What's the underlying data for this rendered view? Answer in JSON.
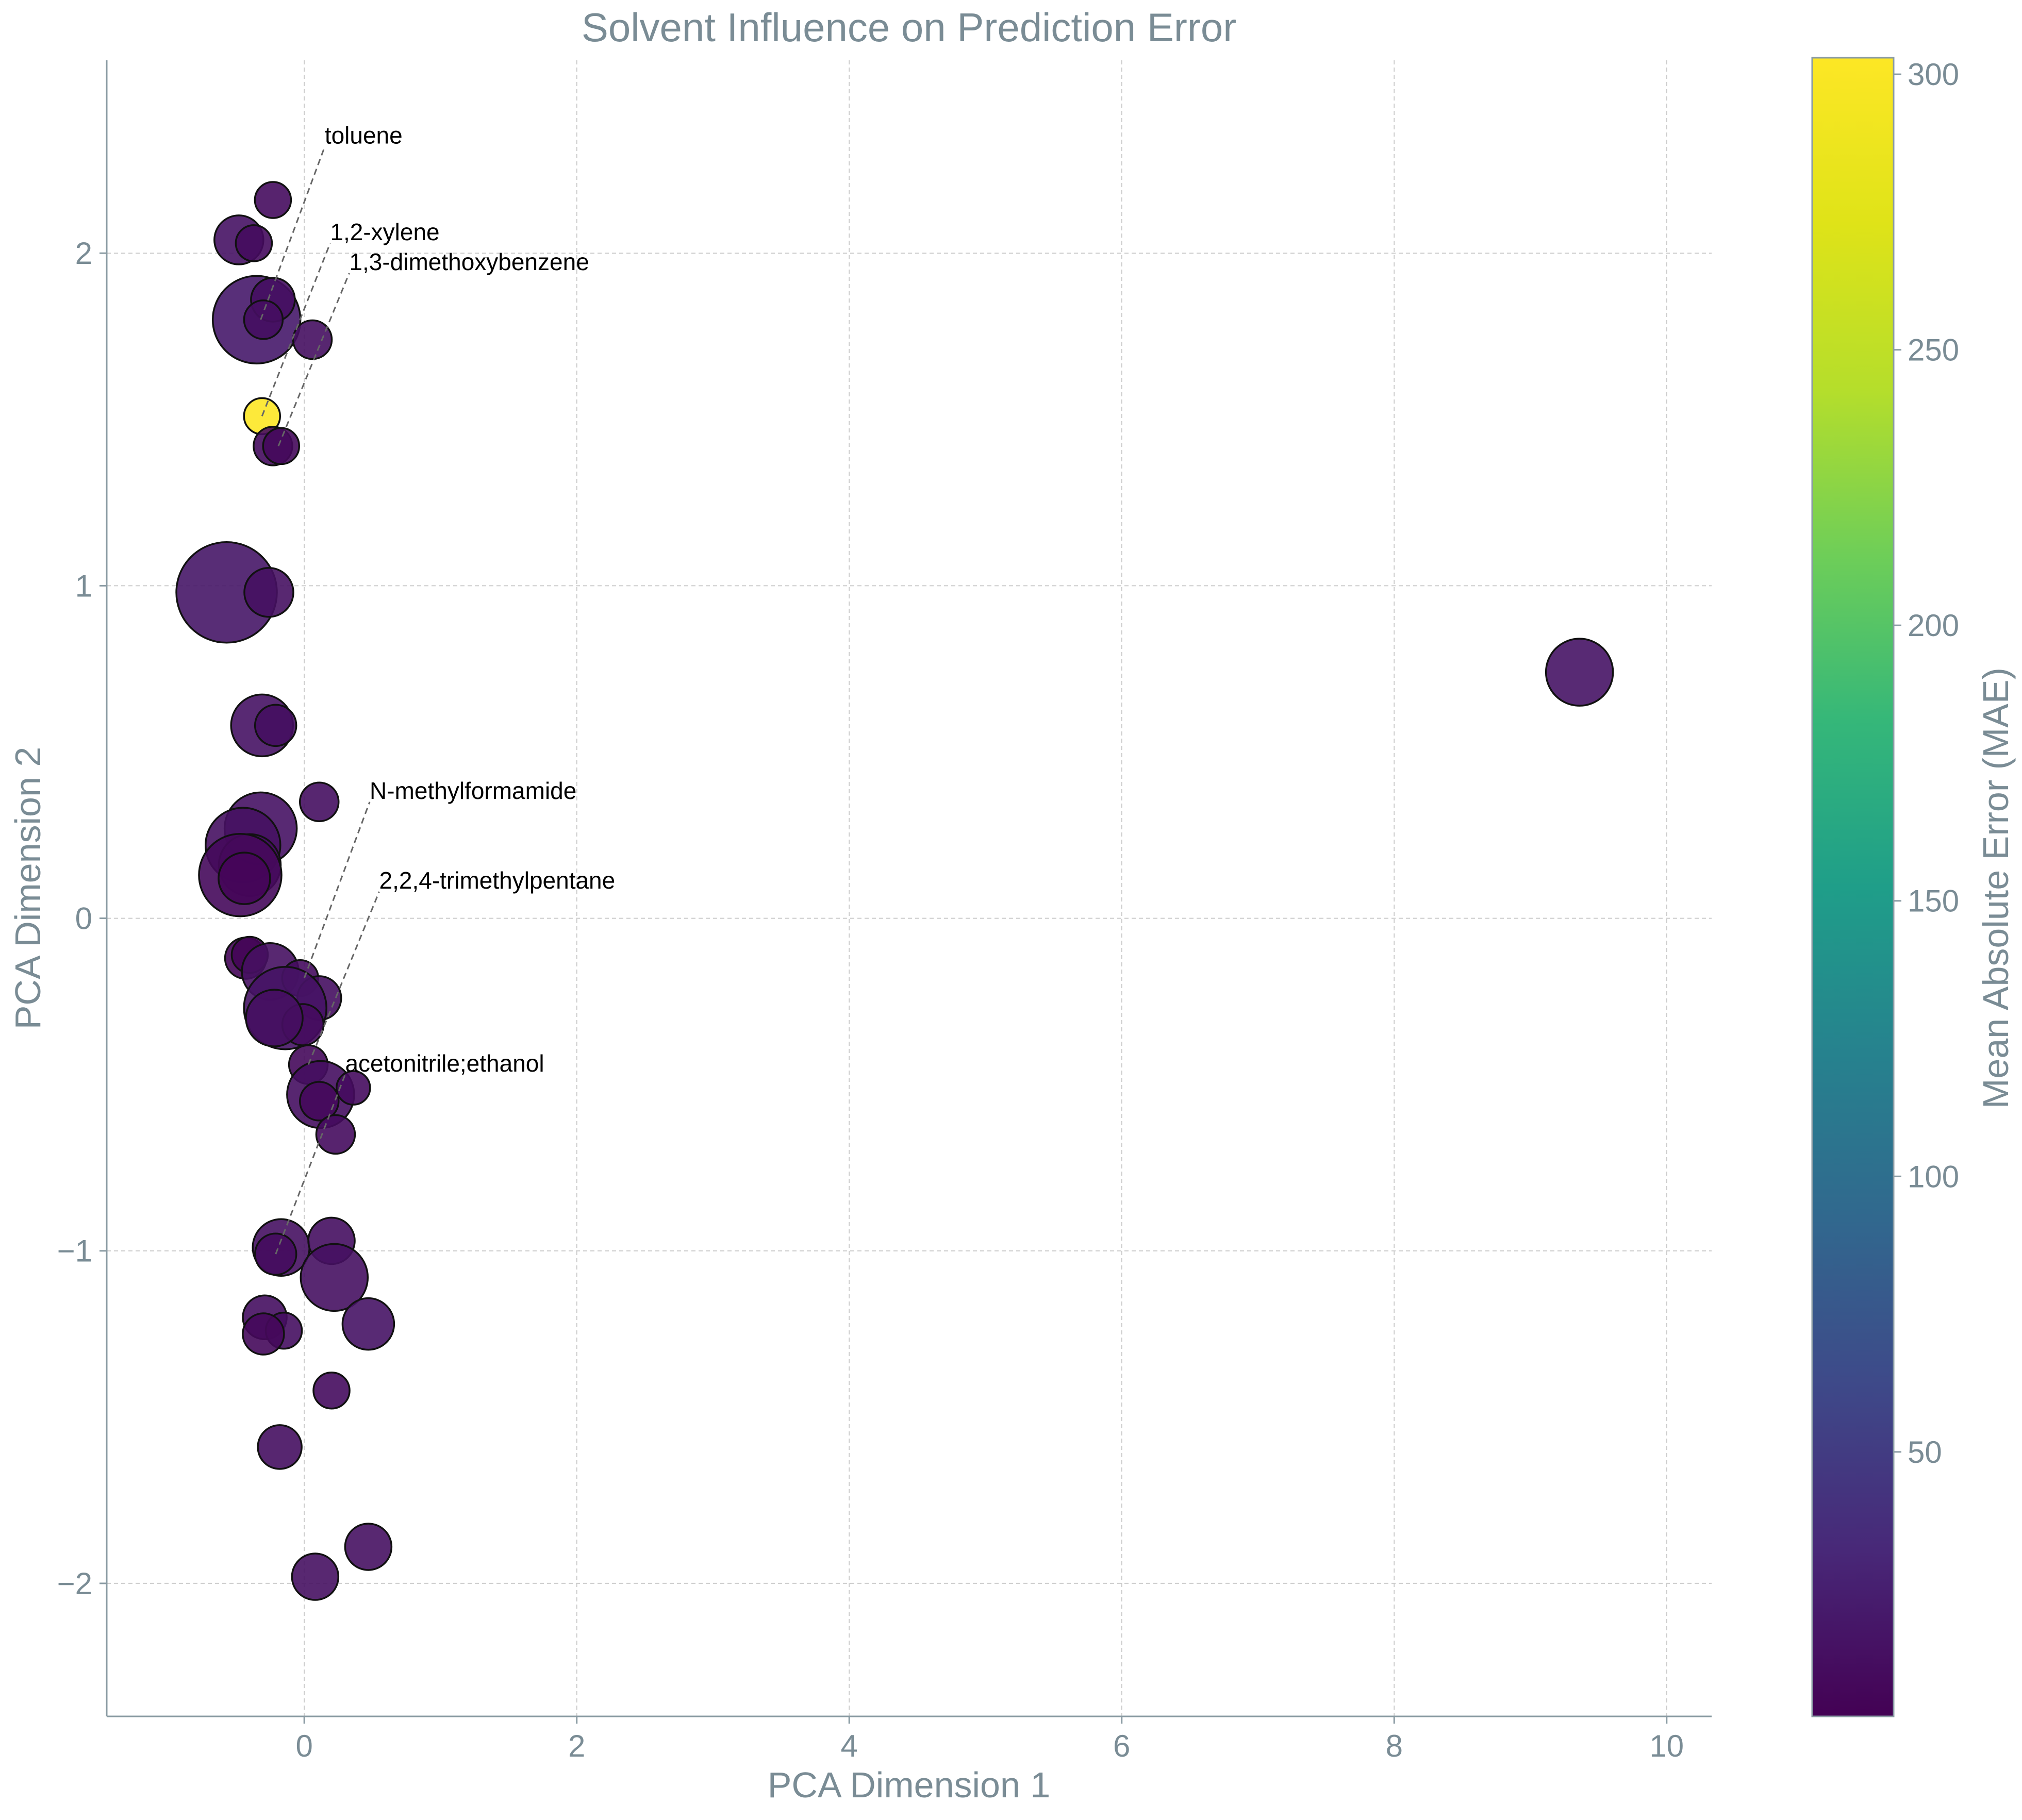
{
  "chart_data": {
    "type": "scatter",
    "title": "Solvent Influence on Prediction Error",
    "xlabel": "PCA Dimension 1",
    "ylabel": "PCA Dimension 2",
    "colorbar_label": "Mean Absolute Error (MAE)",
    "xlim": [
      -1.45,
      10.33
    ],
    "ylim": [
      -2.4,
      2.58
    ],
    "x_ticks": [
      {
        "value": 0,
        "label": "0"
      },
      {
        "value": 2,
        "label": "2"
      },
      {
        "value": 4,
        "label": "4"
      },
      {
        "value": 6,
        "label": "6"
      },
      {
        "value": 8,
        "label": "8"
      },
      {
        "value": 10,
        "label": "10"
      }
    ],
    "y_ticks": [
      {
        "value": -2,
        "label": "−2"
      },
      {
        "value": -1,
        "label": "−1"
      },
      {
        "value": 0,
        "label": "0"
      },
      {
        "value": 1,
        "label": "1"
      },
      {
        "value": 2,
        "label": "2"
      }
    ],
    "colorbar_range": [
      2,
      303
    ],
    "colorbar_ticks": [
      {
        "value": 50,
        "label": "50"
      },
      {
        "value": 100,
        "label": "100"
      },
      {
        "value": 150,
        "label": "150"
      },
      {
        "value": 200,
        "label": "200"
      },
      {
        "value": 250,
        "label": "250"
      },
      {
        "value": 300,
        "label": "300"
      }
    ],
    "colormap": "viridis",
    "grid": true,
    "points": [
      {
        "x": -0.23,
        "y": 2.16,
        "size": 14,
        "mae": 10
      },
      {
        "x": -0.48,
        "y": 2.04,
        "size": 19,
        "mae": 15
      },
      {
        "x": -0.37,
        "y": 2.03,
        "size": 14,
        "mae": 10
      },
      {
        "x": -0.35,
        "y": 1.8,
        "size": 34,
        "mae": 20
      },
      {
        "x": -0.23,
        "y": 1.86,
        "size": 17,
        "mae": 12
      },
      {
        "x": -0.3,
        "y": 1.8,
        "size": 15,
        "mae": 12
      },
      {
        "x": 0.06,
        "y": 1.74,
        "size": 15,
        "mae": 12
      },
      {
        "x": -0.31,
        "y": 1.51,
        "size": 14,
        "mae": 303
      },
      {
        "x": -0.23,
        "y": 1.42,
        "size": 15,
        "mae": 10
      },
      {
        "x": -0.17,
        "y": 1.42,
        "size": 14,
        "mae": 8
      },
      {
        "x": -0.57,
        "y": 0.98,
        "size": 39,
        "mae": 18
      },
      {
        "x": -0.26,
        "y": 0.98,
        "size": 19,
        "mae": 14
      },
      {
        "x": -0.31,
        "y": 0.58,
        "size": 24,
        "mae": 15
      },
      {
        "x": -0.21,
        "y": 0.58,
        "size": 16,
        "mae": 12
      },
      {
        "x": 0.11,
        "y": 0.35,
        "size": 15,
        "mae": 12
      },
      {
        "x": -0.32,
        "y": 0.27,
        "size": 28,
        "mae": 15
      },
      {
        "x": -0.45,
        "y": 0.22,
        "size": 29,
        "mae": 14
      },
      {
        "x": -0.4,
        "y": 0.16,
        "size": 24,
        "mae": 12
      },
      {
        "x": -0.47,
        "y": 0.13,
        "size": 32,
        "mae": 8
      },
      {
        "x": -0.44,
        "y": 0.12,
        "size": 20,
        "mae": 6
      },
      {
        "x": -0.43,
        "y": -0.12,
        "size": 16,
        "mae": 6
      },
      {
        "x": -0.4,
        "y": -0.11,
        "size": 14,
        "mae": 4
      },
      {
        "x": -0.25,
        "y": -0.16,
        "size": 22,
        "mae": 14
      },
      {
        "x": -0.03,
        "y": -0.18,
        "size": 14,
        "mae": 10
      },
      {
        "x": 0.11,
        "y": -0.24,
        "size": 17,
        "mae": 12
      },
      {
        "x": -0.14,
        "y": -0.27,
        "size": 32,
        "mae": 16
      },
      {
        "x": -0.01,
        "y": -0.32,
        "size": 16,
        "mae": 10
      },
      {
        "x": -0.22,
        "y": -0.3,
        "size": 22,
        "mae": 12
      },
      {
        "x": 0.03,
        "y": -0.44,
        "size": 15,
        "mae": 8
      },
      {
        "x": 0.12,
        "y": -0.53,
        "size": 26,
        "mae": 12
      },
      {
        "x": 0.36,
        "y": -0.51,
        "size": 13,
        "mae": 10
      },
      {
        "x": 0.11,
        "y": -0.55,
        "size": 15,
        "mae": 8
      },
      {
        "x": 0.23,
        "y": -0.65,
        "size": 15,
        "mae": 10
      },
      {
        "x": -0.17,
        "y": -0.99,
        "size": 22,
        "mae": 14
      },
      {
        "x": 0.2,
        "y": -0.97,
        "size": 18,
        "mae": 12
      },
      {
        "x": -0.21,
        "y": -1.01,
        "size": 16,
        "mae": 10
      },
      {
        "x": 0.22,
        "y": -1.08,
        "size": 26,
        "mae": 14
      },
      {
        "x": -0.29,
        "y": -1.2,
        "size": 17,
        "mae": 12
      },
      {
        "x": 0.47,
        "y": -1.22,
        "size": 20,
        "mae": 16
      },
      {
        "x": -0.15,
        "y": -1.24,
        "size": 14,
        "mae": 12
      },
      {
        "x": -0.3,
        "y": -1.25,
        "size": 16,
        "mae": 8
      },
      {
        "x": 0.2,
        "y": -1.42,
        "size": 14,
        "mae": 10
      },
      {
        "x": -0.18,
        "y": -1.59,
        "size": 17,
        "mae": 12
      },
      {
        "x": 0.47,
        "y": -1.89,
        "size": 18,
        "mae": 14
      },
      {
        "x": 0.08,
        "y": -1.98,
        "size": 18,
        "mae": 14
      },
      {
        "x": 9.36,
        "y": 0.74,
        "size": 26,
        "mae": 16
      }
    ],
    "annotations": [
      {
        "text": "toluene",
        "x": -0.32,
        "y": 1.8,
        "tx": 0.15,
        "ty": 2.32
      },
      {
        "text": "1,2-xylene",
        "x": -0.31,
        "y": 1.51,
        "tx": 0.19,
        "ty": 2.03
      },
      {
        "text": "1,3-dimethoxybenzene",
        "x": -0.19,
        "y": 1.42,
        "tx": 0.33,
        "ty": 1.94
      },
      {
        "text": "N-methylformamide",
        "x": 0.0,
        "y": -0.18,
        "tx": 0.48,
        "ty": 0.35
      },
      {
        "text": "2,2,4-trimethylpentane",
        "x": 0.03,
        "y": -0.44,
        "tx": 0.55,
        "ty": 0.08
      },
      {
        "text": "acetonitrile;ethanol",
        "x": -0.21,
        "y": -1.01,
        "tx": 0.3,
        "ty": -0.47
      }
    ]
  }
}
